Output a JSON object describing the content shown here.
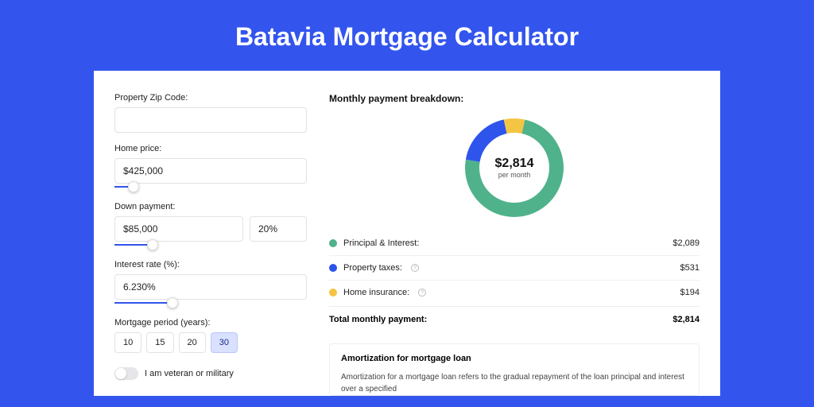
{
  "title": "Batavia Mortgage Calculator",
  "colors": {
    "page_bg": "#3355ee",
    "card_bg": "#ffffff",
    "slider": "#3355ee",
    "period_active_bg": "#d9e1ff"
  },
  "form": {
    "zip": {
      "label": "Property Zip Code:",
      "value": ""
    },
    "home": {
      "label": "Home price:",
      "value": "$425,000",
      "slider_pct": 10
    },
    "down": {
      "label": "Down payment:",
      "value": "$85,000",
      "pct": "20%",
      "slider_pct": 20
    },
    "rate": {
      "label": "Interest rate (%):",
      "value": "6.230%",
      "slider_pct": 30
    },
    "period": {
      "label": "Mortgage period (years):",
      "options": [
        "10",
        "15",
        "20",
        "30"
      ],
      "active": "30"
    },
    "veteran": {
      "label": "I am veteran or military",
      "on": false
    }
  },
  "breakdown": {
    "title": "Monthly payment breakdown:",
    "donut": {
      "center_amount": "$2,814",
      "center_sub": "per month",
      "slices": [
        {
          "key": "pi",
          "color": "#4fb28b",
          "pct": 74.2
        },
        {
          "key": "tax",
          "color": "#2f54eb",
          "pct": 18.9
        },
        {
          "key": "ins",
          "color": "#f4c542",
          "pct": 6.9
        }
      ],
      "ring_width": 18
    },
    "items": [
      {
        "key": "pi",
        "label": "Principal & Interest:",
        "value": "$2,089",
        "color": "#4fb28b",
        "info": false
      },
      {
        "key": "tax",
        "label": "Property taxes:",
        "value": "$531",
        "color": "#2f54eb",
        "info": true
      },
      {
        "key": "ins",
        "label": "Home insurance:",
        "value": "$194",
        "color": "#f4c542",
        "info": true
      }
    ],
    "total": {
      "label": "Total monthly payment:",
      "value": "$2,814"
    }
  },
  "amort": {
    "title": "Amortization for mortgage loan",
    "text": "Amortization for a mortgage loan refers to the gradual repayment of the loan principal and interest over a specified"
  }
}
